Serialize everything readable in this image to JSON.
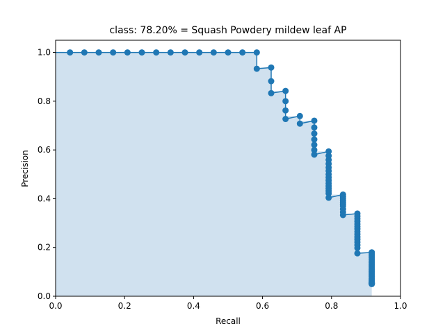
{
  "chart_data": {
    "type": "line",
    "title": "class: 78.20% = Squash Powdery mildew leaf AP",
    "xlabel": "Recall",
    "ylabel": "Precision",
    "xlim": [
      0.0,
      1.0
    ],
    "ylim": [
      0.0,
      1.05
    ],
    "xticks": [
      0.0,
      0.2,
      0.4,
      0.6,
      0.8,
      1.0
    ],
    "yticks": [
      0.0,
      0.2,
      0.4,
      0.6,
      0.8,
      1.0
    ],
    "xtick_labels": [
      "0.0",
      "0.2",
      "0.4",
      "0.6",
      "0.8",
      "1.0"
    ],
    "ytick_labels": [
      "0.0",
      "0.2",
      "0.4",
      "0.6",
      "0.8",
      "1.0"
    ],
    "grid": false,
    "colors": {
      "line": "#1f77b4",
      "fill": "#d0e1ef"
    },
    "series": [
      {
        "recall": [
          0.0,
          0.0417,
          0.0833,
          0.125,
          0.1667,
          0.2083,
          0.25,
          0.2917,
          0.3333,
          0.375,
          0.4167,
          0.4583,
          0.5,
          0.5417,
          0.5833,
          0.5833,
          0.625,
          0.625,
          0.625,
          0.6667,
          0.6667,
          0.6667,
          0.6667,
          0.7083,
          0.7083,
          0.75,
          0.75,
          0.75,
          0.75,
          0.75,
          0.75,
          0.75,
          0.7917,
          0.7917,
          0.7917,
          0.7917,
          0.7917,
          0.7917,
          0.7917,
          0.7917,
          0.7917,
          0.7917,
          0.7917,
          0.7917,
          0.7917,
          0.7917,
          0.7917,
          0.8333,
          0.8333,
          0.8333,
          0.8333,
          0.8333,
          0.8333,
          0.8333,
          0.8333,
          0.8333,
          0.8333,
          0.875,
          0.875,
          0.875,
          0.875,
          0.875,
          0.875,
          0.875,
          0.875,
          0.875,
          0.875,
          0.875,
          0.875,
          0.875,
          0.875,
          0.875,
          0.9167,
          0.9167,
          0.9167,
          0.9167,
          0.9167,
          0.9167,
          0.9167,
          0.9167,
          0.9167,
          0.9167,
          0.9167,
          0.9167,
          0.9167,
          0.9167,
          0.9167,
          0.9167,
          0.9167,
          0.9167,
          0.9167,
          0.9167,
          0.9167,
          0.9167,
          0.9167,
          0.9167
        ],
        "precision": [
          1.0,
          1.0,
          1.0,
          1.0,
          1.0,
          1.0,
          1.0,
          1.0,
          1.0,
          1.0,
          1.0,
          1.0,
          1.0,
          1.0,
          1.0,
          0.933,
          0.938,
          0.882,
          0.833,
          0.842,
          0.8,
          0.762,
          0.727,
          0.739,
          0.708,
          0.72,
          0.692,
          0.667,
          0.643,
          0.621,
          0.6,
          0.581,
          0.594,
          0.576,
          0.559,
          0.543,
          0.528,
          0.514,
          0.5,
          0.487,
          0.475,
          0.463,
          0.452,
          0.442,
          0.432,
          0.422,
          0.404,
          0.417,
          0.408,
          0.4,
          0.392,
          0.385,
          0.377,
          0.37,
          0.357,
          0.345,
          0.333,
          0.339,
          0.328,
          0.318,
          0.307,
          0.296,
          0.286,
          0.276,
          0.265,
          0.254,
          0.243,
          0.233,
          0.222,
          0.21,
          0.198,
          0.176,
          0.18,
          0.172,
          0.165,
          0.158,
          0.151,
          0.144,
          0.137,
          0.13,
          0.123,
          0.116,
          0.109,
          0.102,
          0.095,
          0.088,
          0.081,
          0.074,
          0.068,
          0.063,
          0.058,
          0.055,
          0.053,
          0.052,
          0.051,
          0.05
        ]
      }
    ]
  }
}
